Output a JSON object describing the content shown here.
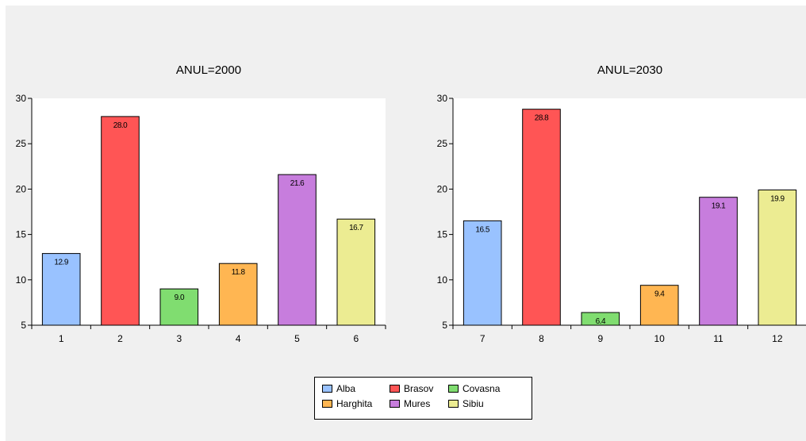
{
  "chart_data": [
    {
      "type": "bar",
      "title": "ANUL=2000",
      "categories": [
        "1",
        "2",
        "3",
        "4",
        "5",
        "6"
      ],
      "values": [
        12.9,
        28.0,
        9.0,
        11.8,
        21.6,
        16.7
      ],
      "data_labels": [
        "12.9",
        "28.0",
        "9.0",
        "11.8",
        "21.6",
        "16.7"
      ],
      "series_names": [
        "Alba",
        "Brasov",
        "Covasna",
        "Harghita",
        "Mures",
        "Sibiu"
      ],
      "ylim": [
        5,
        30
      ],
      "yticks": [
        5,
        10,
        15,
        20,
        25,
        30
      ],
      "xlabel": "",
      "ylabel": "",
      "grid": false
    },
    {
      "type": "bar",
      "title": "ANUL=2030",
      "categories": [
        "7",
        "8",
        "9",
        "10",
        "11",
        "12"
      ],
      "values": [
        16.5,
        28.8,
        6.4,
        9.4,
        19.1,
        19.9
      ],
      "data_labels": [
        "16.5",
        "28.8",
        "6.4",
        "9.4",
        "19.1",
        "19.9"
      ],
      "series_names": [
        "Alba",
        "Brasov",
        "Covasna",
        "Harghita",
        "Mures",
        "Sibiu"
      ],
      "ylim": [
        5,
        30
      ],
      "yticks": [
        5,
        10,
        15,
        20,
        25,
        30
      ],
      "xlabel": "",
      "ylabel": "",
      "grid": false
    }
  ],
  "legend": {
    "placement": "bottom-center",
    "items": [
      {
        "label": "Alba",
        "color": "#99c2ff"
      },
      {
        "label": "Brasov",
        "color": "#ff5555"
      },
      {
        "label": "Covasna",
        "color": "#80dd70"
      },
      {
        "label": "Harghita",
        "color": "#ffb652"
      },
      {
        "label": "Mures",
        "color": "#c77ddd"
      },
      {
        "label": "Sibiu",
        "color": "#ecec92"
      }
    ]
  },
  "colors": {
    "background": "#f0f0f0",
    "plot_area": "#ffffff"
  }
}
